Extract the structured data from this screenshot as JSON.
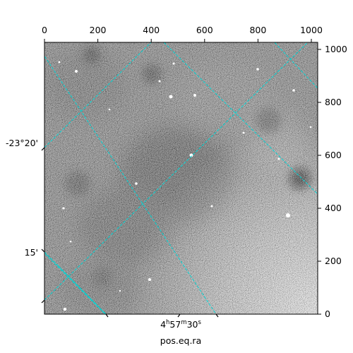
{
  "image": {
    "description_type": "astronomical grayscale sky image with WCS grid overlay",
    "colormap": "grayscale",
    "grid_color": "#00d5d5"
  },
  "axes": {
    "top_ticks": [
      "0",
      "200",
      "400",
      "600",
      "800",
      "1000"
    ],
    "right_ticks": [
      "0",
      "200",
      "400",
      "600",
      "800",
      "1000"
    ],
    "left_labels": [
      "-23°20'",
      "15'"
    ],
    "bottom_label": {
      "hour": "4",
      "h": "h",
      "min": "57",
      "m": "m",
      "sec": "30",
      "s": "s"
    },
    "xlabel": "pos.eq.ra"
  }
}
